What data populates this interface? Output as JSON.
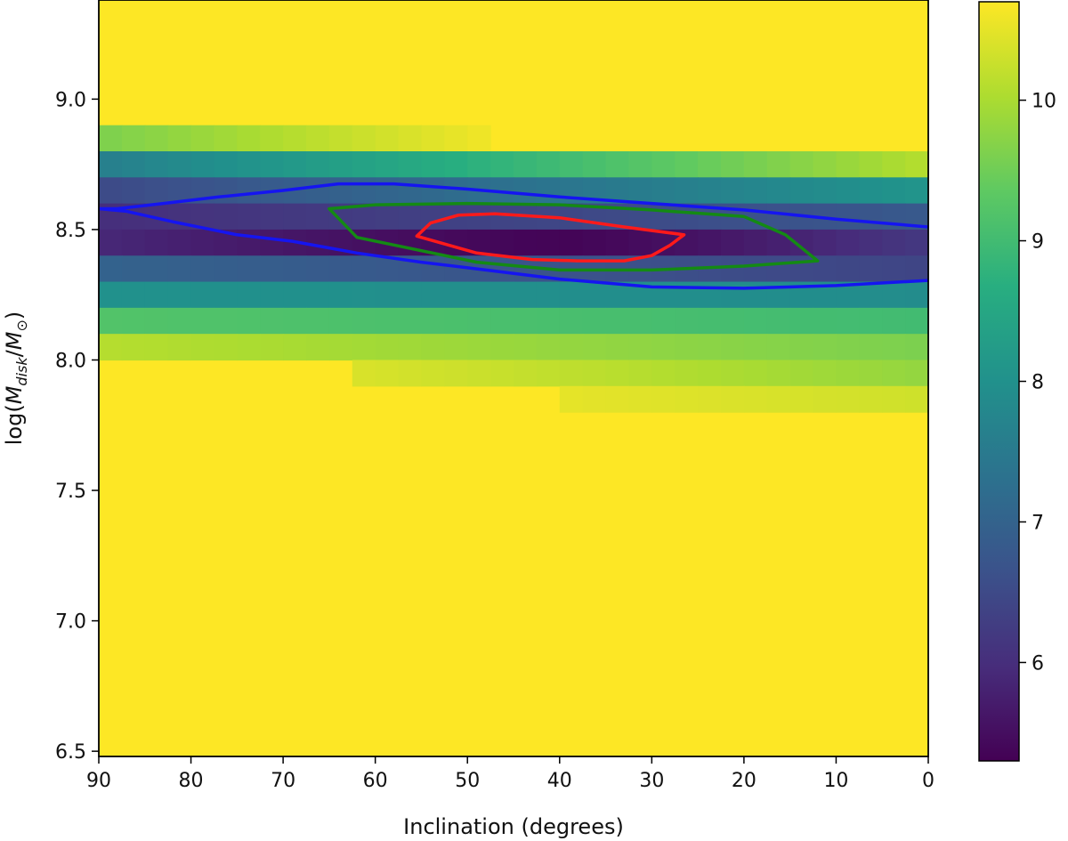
{
  "chart_data": {
    "type": "heatmap",
    "title": "",
    "xlabel": "Inclination (degrees)",
    "ylabel": "log(M_disk/M_⊙)",
    "xlim": [
      90,
      0
    ],
    "ylim": [
      6.48,
      9.38
    ],
    "x_ticks": [
      90,
      80,
      70,
      60,
      50,
      40,
      30,
      20,
      10,
      0
    ],
    "x_tick_labels": [
      "90",
      "80",
      "70",
      "60",
      "50",
      "40",
      "30",
      "20",
      "10",
      "0"
    ],
    "y_ticks": [
      6.5,
      7.0,
      7.5,
      8.0,
      8.5,
      9.0
    ],
    "y_tick_labels": [
      "6.5",
      "7.0",
      "7.5",
      "8.0",
      "8.5",
      "9.0"
    ],
    "colorbar": {
      "colormap": "viridis",
      "min": 5.3,
      "max": 10.7,
      "ticks": [
        6,
        7,
        8,
        9,
        10
      ],
      "tick_labels": [
        "6",
        "7",
        "8",
        "9",
        "10"
      ]
    },
    "background_value": 10.7,
    "cell_width_deg": 2.5,
    "rows": [
      {
        "y_bottom": 8.8,
        "y_top": 8.9,
        "x_from": 90,
        "x_to": 47.5,
        "left": 9.6,
        "right": 10.6
      },
      {
        "y_bottom": 8.7,
        "y_top": 8.8,
        "x_from": 90,
        "x_to": 0,
        "left": 7.6,
        "right": 10.1
      },
      {
        "y_bottom": 8.6,
        "y_top": 8.7,
        "x_from": 90,
        "x_to": 0,
        "left": 6.5,
        "right": 8.1
      },
      {
        "y_bottom": 8.5,
        "y_top": 8.6,
        "x_from": 90,
        "x_to": 0,
        "left": 6.0,
        "right": 6.8
      },
      {
        "y_bottom": 8.4,
        "y_top": 8.5,
        "x_from": 90,
        "x_to": 0,
        "left": 5.9,
        "right": 6.2,
        "min": 5.35,
        "min_at": 40
      },
      {
        "y_bottom": 8.3,
        "y_top": 8.4,
        "x_from": 90,
        "x_to": 0,
        "left": 7.0,
        "right": 6.4
      },
      {
        "y_bottom": 8.2,
        "y_top": 8.3,
        "x_from": 90,
        "x_to": 0,
        "left": 8.0,
        "right": 7.9
      },
      {
        "y_bottom": 8.1,
        "y_top": 8.2,
        "x_from": 90,
        "x_to": 0,
        "left": 9.2,
        "right": 9.0
      },
      {
        "y_bottom": 8.0,
        "y_top": 8.1,
        "x_from": 90,
        "x_to": 0,
        "left": 10.1,
        "right": 9.6
      },
      {
        "y_bottom": 7.9,
        "y_top": 8.0,
        "x_from": 62.5,
        "x_to": 0,
        "left": 10.4,
        "right": 9.8
      },
      {
        "y_bottom": 7.8,
        "y_top": 7.9,
        "x_from": 40,
        "x_to": 0,
        "left": 10.5,
        "right": 10.3
      }
    ],
    "contours": [
      {
        "color": "#1515f0",
        "closed": false,
        "points": [
          [
            0,
            8.51
          ],
          [
            10,
            8.54
          ],
          [
            20,
            8.575
          ],
          [
            30,
            8.6
          ],
          [
            40,
            8.625
          ],
          [
            50,
            8.655
          ],
          [
            58,
            8.675
          ],
          [
            64,
            8.675
          ],
          [
            70,
            8.65
          ],
          [
            77,
            8.625
          ],
          [
            83,
            8.6
          ],
          [
            88,
            8.58
          ],
          [
            90,
            8.58
          ],
          [
            87,
            8.57
          ],
          [
            82,
            8.53
          ],
          [
            75,
            8.48
          ],
          [
            69,
            8.455
          ],
          [
            62,
            8.41
          ],
          [
            55,
            8.375
          ],
          [
            48,
            8.345
          ],
          [
            40,
            8.31
          ],
          [
            30,
            8.28
          ],
          [
            20,
            8.275
          ],
          [
            10,
            8.285
          ],
          [
            0,
            8.305
          ]
        ]
      },
      {
        "color": "#148a14",
        "closed": true,
        "points": [
          [
            65,
            8.58
          ],
          [
            60,
            8.595
          ],
          [
            50,
            8.6
          ],
          [
            40,
            8.595
          ],
          [
            30,
            8.575
          ],
          [
            20,
            8.55
          ],
          [
            15.5,
            8.48
          ],
          [
            12,
            8.38
          ],
          [
            20,
            8.36
          ],
          [
            30,
            8.345
          ],
          [
            40,
            8.345
          ],
          [
            49,
            8.375
          ],
          [
            62,
            8.47
          ]
        ]
      },
      {
        "color": "#ff1a1a",
        "closed": true,
        "points": [
          [
            55.5,
            8.475
          ],
          [
            54,
            8.525
          ],
          [
            51,
            8.555
          ],
          [
            47,
            8.56
          ],
          [
            40,
            8.545
          ],
          [
            33,
            8.51
          ],
          [
            26.5,
            8.48
          ],
          [
            28,
            8.44
          ],
          [
            30,
            8.4
          ],
          [
            33,
            8.38
          ],
          [
            38,
            8.38
          ],
          [
            43,
            8.385
          ],
          [
            49,
            8.41
          ],
          [
            55.5,
            8.475
          ]
        ]
      }
    ]
  }
}
